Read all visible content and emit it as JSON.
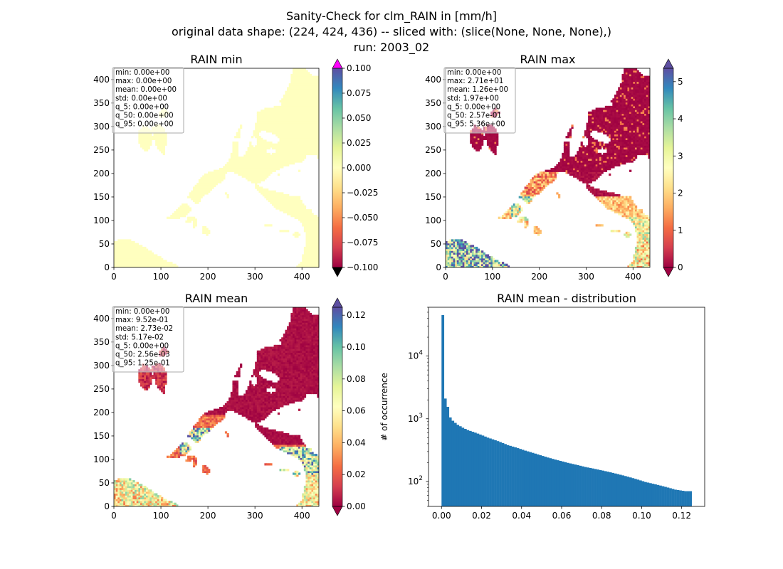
{
  "figure": {
    "title_lines": [
      "Sanity-Check for clm_RAIN in [mm/h]",
      "original data shape: (224, 424, 436) -- sliced with: (slice(None, None, None),)",
      "run: 2003_02"
    ]
  },
  "colors": {
    "cmap_spectral": [
      "#9e0142",
      "#d53e4f",
      "#f46d43",
      "#fdae61",
      "#fee08b",
      "#ffffbf",
      "#e6f598",
      "#abdda4",
      "#66c2a5",
      "#3288bd",
      "#5e4fa2"
    ],
    "over_magenta": "#ff00ff",
    "under_black": "#000000",
    "hist_bar": "#1f77b4",
    "stats_box_edge": "#aaaaaa"
  },
  "chart_data": [
    {
      "type": "heatmap",
      "title": "RAIN min",
      "x_ticks": [
        "0",
        "100",
        "200",
        "300",
        "400"
      ],
      "y_ticks": [
        "0",
        "50",
        "100",
        "150",
        "200",
        "250",
        "300",
        "350",
        "400"
      ],
      "xlim": [
        0,
        436
      ],
      "ylim": [
        0,
        424
      ],
      "colorbar": {
        "vmin": -0.1,
        "vmax": 0.1,
        "ticks": [
          "-0.100",
          "-0.075",
          "-0.050",
          "-0.025",
          "0.000",
          "0.025",
          "0.050",
          "0.075",
          "0.100"
        ],
        "extend": "both",
        "over_color": "magenta",
        "under_color": "black"
      },
      "field": "uniform_zero",
      "stats": [
        "min: 0.00e+00",
        "max: 0.00e+00",
        "mean: 0.00e+00",
        "std: 0.00e+00",
        "q_5: 0.00e+00",
        "q_50: 0.00e+00",
        "q_95: 0.00e+00"
      ]
    },
    {
      "type": "heatmap",
      "title": "RAIN max",
      "x_ticks": [
        "0",
        "100",
        "200",
        "300",
        "400"
      ],
      "y_ticks": [
        "0",
        "50",
        "100",
        "150",
        "200",
        "250",
        "300",
        "350",
        "400"
      ],
      "xlim": [
        0,
        436
      ],
      "ylim": [
        0,
        424
      ],
      "colorbar": {
        "vmin": 0,
        "vmax": 5.36,
        "ticks": [
          "0",
          "1",
          "2",
          "3",
          "4",
          "5"
        ],
        "extend": "both"
      },
      "field": "max",
      "stats": [
        "min: 0.00e+00",
        "max: 2.71e+01",
        "mean: 1.26e+00",
        "std: 1.97e+00",
        "q_5: 0.00e+00",
        "q_50: 2.57e-01",
        "q_95: 5.36e+00"
      ]
    },
    {
      "type": "heatmap",
      "title": "RAIN mean",
      "x_ticks": [
        "0",
        "100",
        "200",
        "300",
        "400"
      ],
      "y_ticks": [
        "0",
        "50",
        "100",
        "150",
        "200",
        "250",
        "300",
        "350",
        "400"
      ],
      "xlim": [
        0,
        436
      ],
      "ylim": [
        0,
        424
      ],
      "colorbar": {
        "vmin": 0,
        "vmax": 0.125,
        "ticks": [
          "0.00",
          "0.02",
          "0.04",
          "0.06",
          "0.08",
          "0.10",
          "0.12"
        ],
        "extend": "both"
      },
      "field": "mean",
      "stats": [
        "min: 0.00e+00",
        "max: 9.52e-01",
        "mean: 2.73e-02",
        "std: 5.17e-02",
        "q_5: 0.00e+00",
        "q_50: 2.56e-03",
        "q_95: 1.25e-01"
      ]
    },
    {
      "type": "bar",
      "title": "RAIN mean - distribution",
      "ylabel": "# of occurrence",
      "xlabel": "",
      "yscale": "log",
      "xlim": [
        -0.0065,
        0.1315
      ],
      "ylim": [
        40,
        60000
      ],
      "x_ticks": [
        "0.00",
        "0.02",
        "0.04",
        "0.06",
        "0.08",
        "0.10",
        "0.12"
      ],
      "y_ticks": [
        "10^2",
        "10^3",
        "10^4"
      ],
      "bin_range": [
        0,
        0.125
      ],
      "bins": 100,
      "bin_values": [
        45000,
        2100,
        1550,
        1050,
        930,
        860,
        800,
        760,
        720,
        690,
        660,
        640,
        620,
        600,
        580,
        560,
        540,
        520,
        500,
        485,
        470,
        455,
        440,
        425,
        410,
        395,
        380,
        370,
        360,
        350,
        340,
        330,
        320,
        310,
        302,
        294,
        286,
        278,
        270,
        262,
        255,
        248,
        241,
        235,
        229,
        223,
        218,
        213,
        208,
        203,
        198,
        194,
        190,
        186,
        182,
        178,
        174,
        170,
        167,
        164,
        161,
        158,
        155,
        152,
        149,
        146,
        143,
        140,
        137,
        134,
        131,
        128,
        125,
        122,
        119,
        116,
        113,
        110,
        107,
        104,
        101,
        98,
        96,
        94,
        92,
        90,
        88,
        86,
        84,
        82,
        80,
        78,
        76,
        74,
        73,
        72,
        71,
        70,
        70,
        70
      ]
    }
  ]
}
